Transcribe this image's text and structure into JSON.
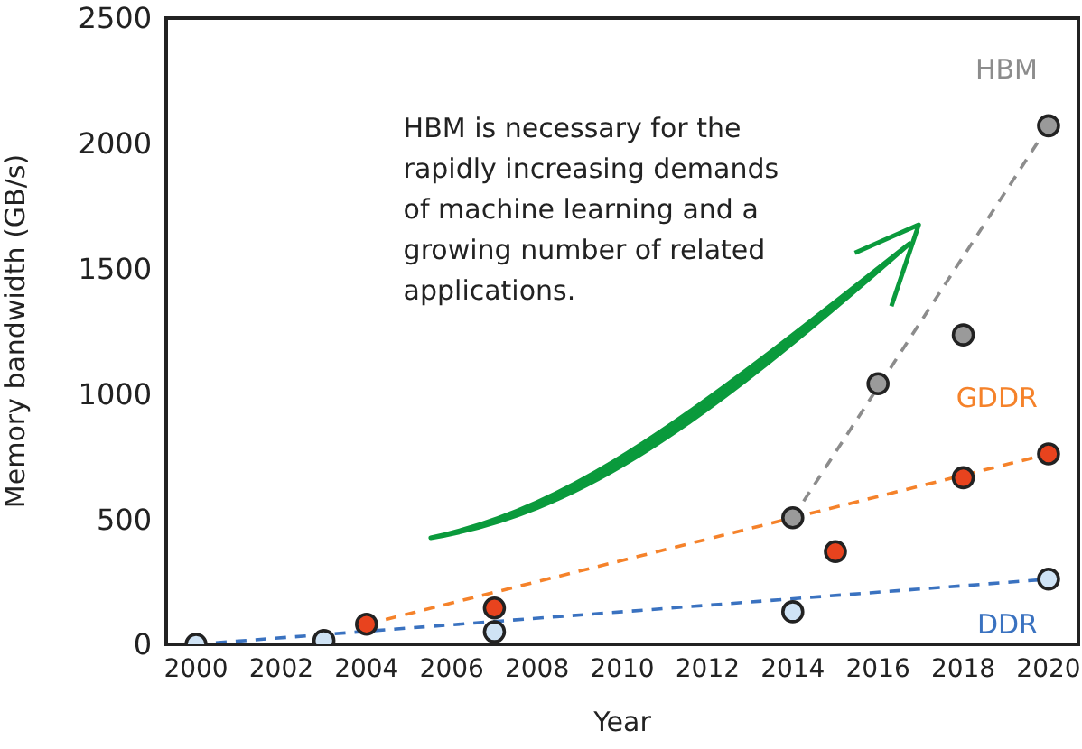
{
  "chart_data": {
    "type": "scatter",
    "xlabel": "Year",
    "ylabel": "Memory bandwidth (GB/s)",
    "xlim": [
      1999.3,
      2020.7
    ],
    "xticks": [
      2000,
      2002,
      2004,
      2006,
      2008,
      2010,
      2012,
      2014,
      2016,
      2018,
      2020
    ],
    "ylim": [
      0,
      2500
    ],
    "yticks": [
      0,
      500,
      1000,
      1500,
      2000,
      2500
    ],
    "grid": false,
    "legend": false,
    "marker": "circle",
    "annotations": [
      "HBM is necessary for the rapidly increasing demands of machine learning and a growing number of related applications."
    ],
    "series": [
      {
        "name": "DDR",
        "color": "#cfe3f5",
        "x": [
          2000,
          2003,
          2007,
          2014,
          2020
        ],
        "values": [
          0,
          15,
          50,
          130,
          260
        ]
      },
      {
        "name": "GDDR",
        "color": "#e8431e",
        "x": [
          2004,
          2007,
          2015,
          2018,
          2020
        ],
        "values": [
          80,
          145,
          370,
          665,
          760
        ]
      },
      {
        "name": "HBM",
        "color": "#9a9a9a",
        "x": [
          2014,
          2016,
          2018,
          2020
        ],
        "values": [
          505,
          1040,
          1235,
          2070
        ]
      },
      {
        "type": "line",
        "marker": "none",
        "color": "#3a72c0",
        "line_style": "dashed",
        "x": [
          2000,
          2020
        ],
        "values": [
          0,
          260
        ]
      },
      {
        "type": "line",
        "marker": "none",
        "color": "#f5822a",
        "line_style": "dashed",
        "x": [
          2004,
          2020
        ],
        "values": [
          80,
          760
        ]
      },
      {
        "type": "line",
        "marker": "none",
        "color": "#8c8c8c",
        "line_style": "dashed",
        "x": [
          2014,
          2020
        ],
        "values": [
          505,
          2070
        ]
      }
    ]
  }
}
